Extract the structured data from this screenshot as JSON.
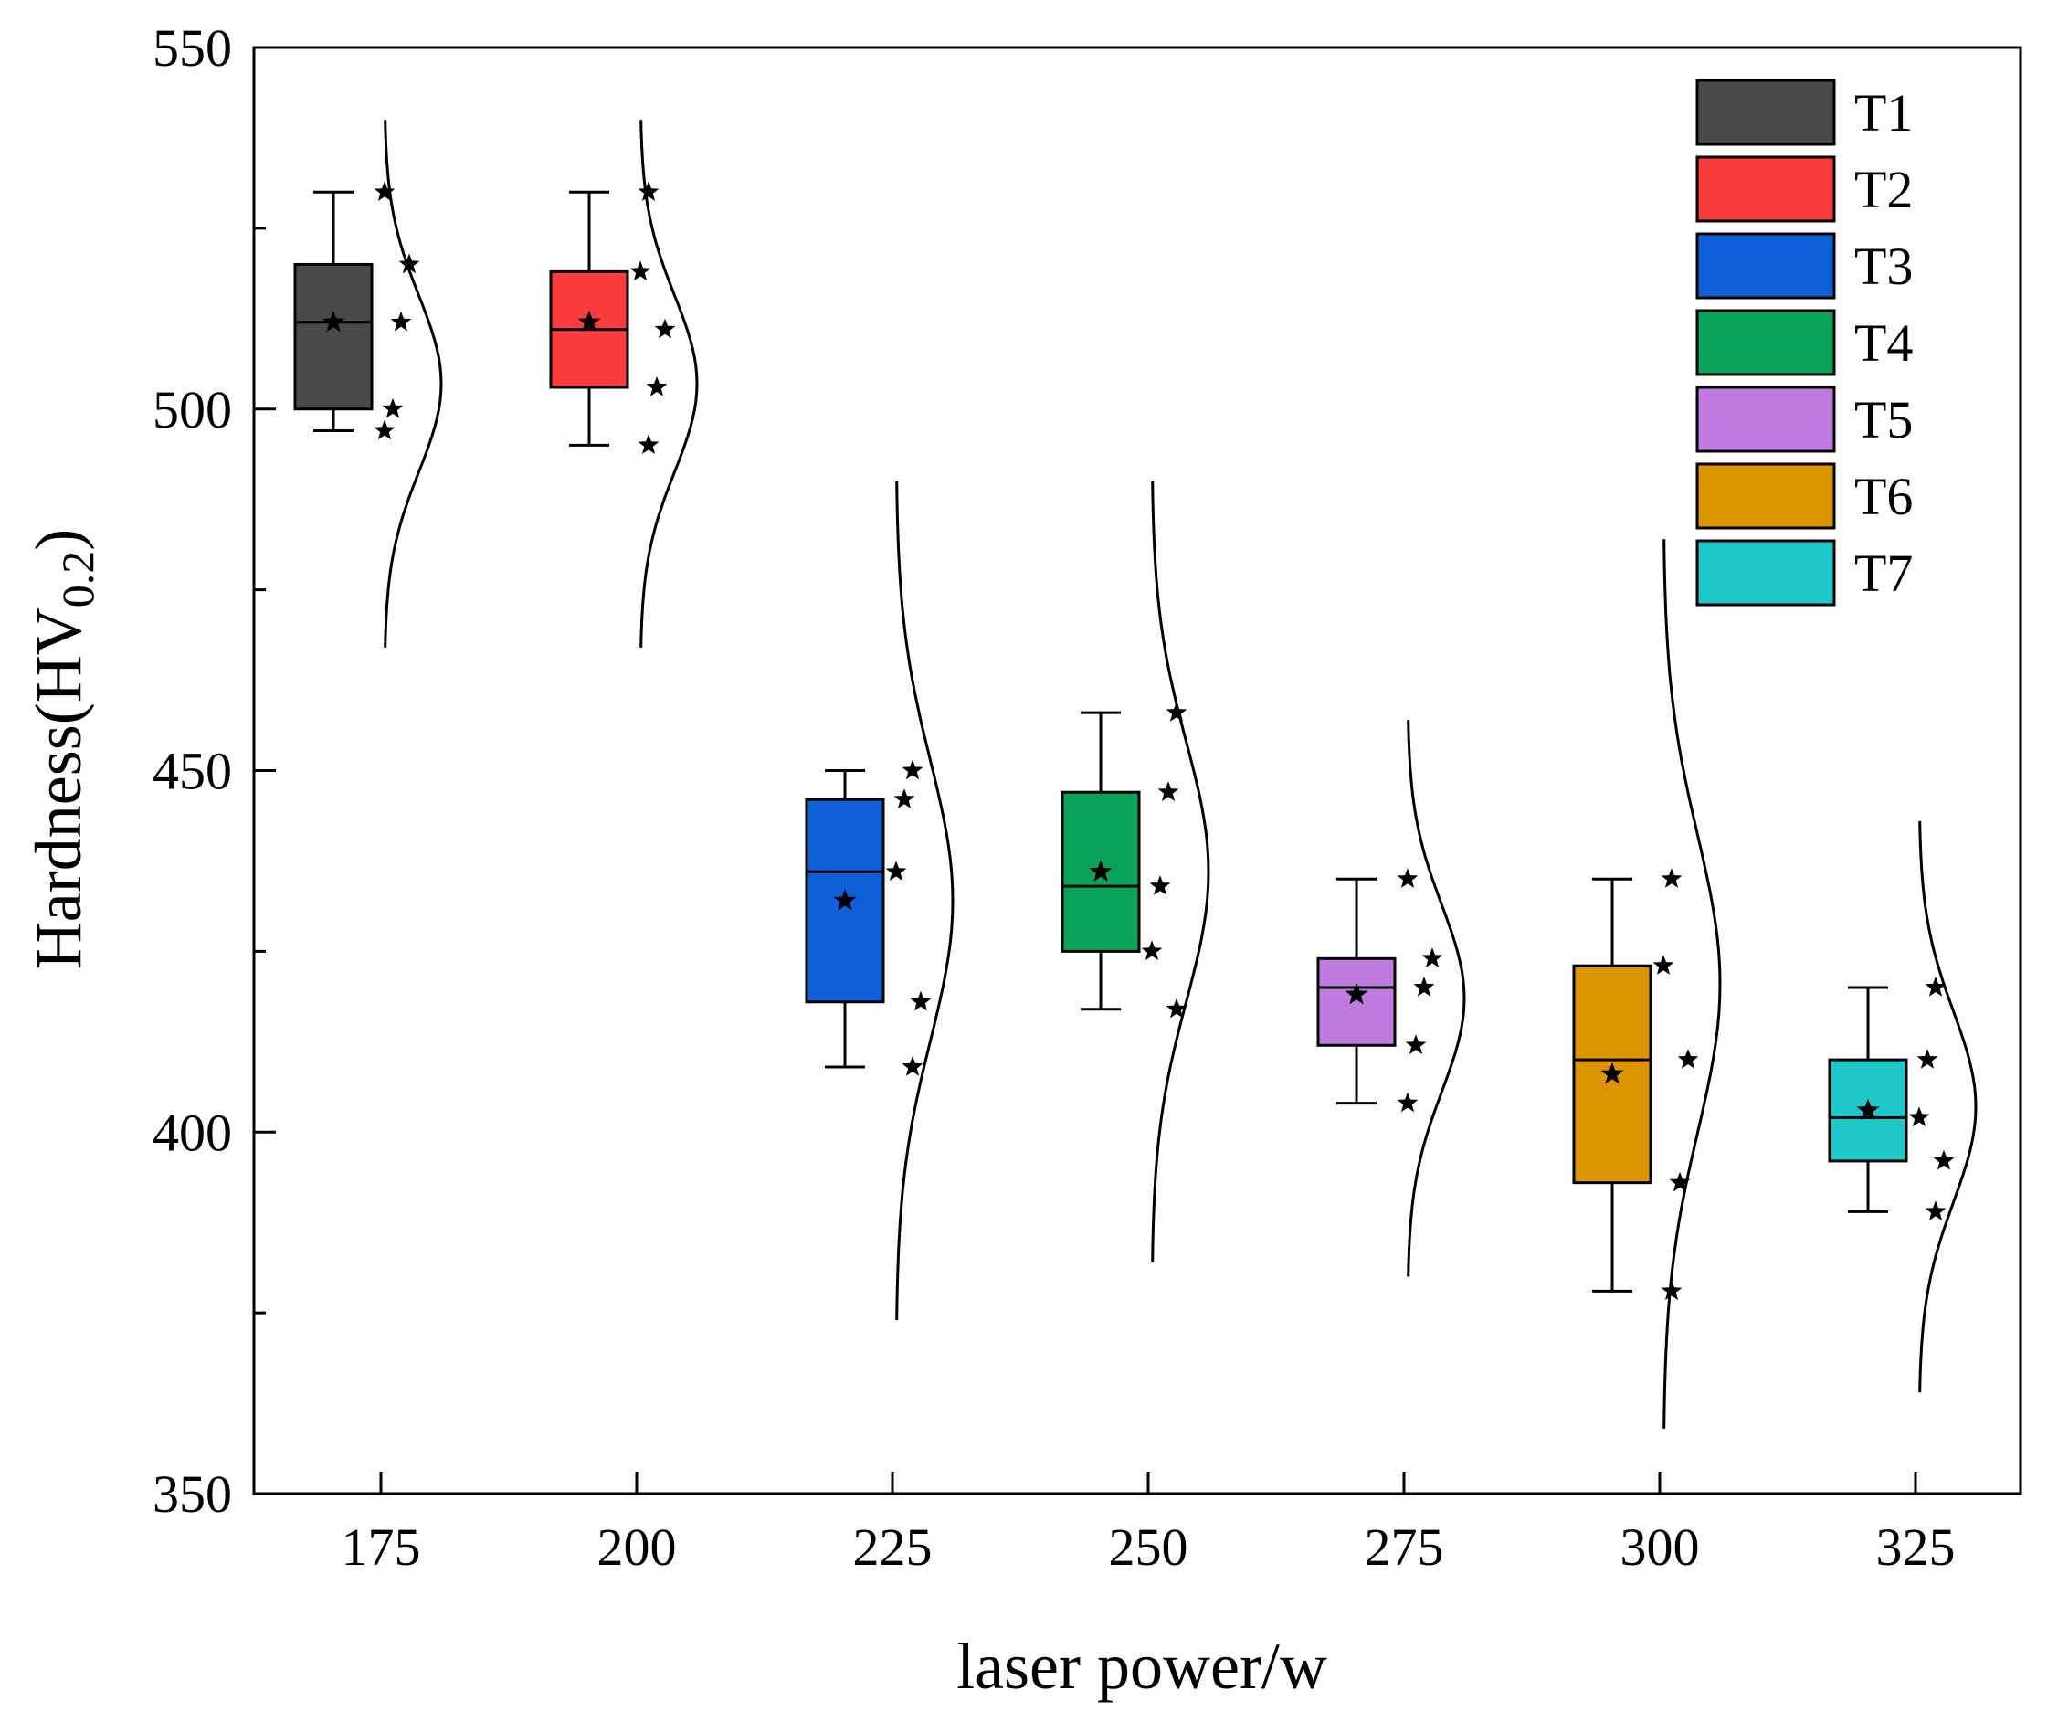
{
  "chart_data": {
    "type": "box",
    "title": "",
    "xlabel": "laser power/w",
    "ylabel": {
      "main": "Hardness(HV",
      "subscript": "0.2",
      "close": ")"
    },
    "ylim": [
      350,
      550
    ],
    "yticks": [
      350,
      400,
      450,
      500,
      550
    ],
    "categories": [
      "175",
      "200",
      "225",
      "250",
      "275",
      "300",
      "325"
    ],
    "series": [
      {
        "name": "T1",
        "color": "#4a4a4a",
        "box": {
          "min": 497,
          "q1": 500,
          "median": 512,
          "q3": 520,
          "max": 530,
          "mean": 512
        },
        "points": [
          530,
          520,
          512,
          500,
          497
        ],
        "dist": {
          "lo": 467,
          "hi": 540
        }
      },
      {
        "name": "T2",
        "color": "#fa3c3c",
        "box": {
          "min": 495,
          "q1": 503,
          "median": 511,
          "q3": 519,
          "max": 530,
          "mean": 512
        },
        "points": [
          530,
          519,
          511,
          503,
          495
        ],
        "dist": {
          "lo": 467,
          "hi": 540
        }
      },
      {
        "name": "T3",
        "color": "#0e5fd8",
        "box": {
          "min": 409,
          "q1": 418,
          "median": 436,
          "q3": 446,
          "max": 450,
          "mean": 432
        },
        "points": [
          450,
          446,
          436,
          418,
          409
        ],
        "dist": {
          "lo": 374,
          "hi": 490
        }
      },
      {
        "name": "T4",
        "color": "#0ba25a",
        "box": {
          "min": 417,
          "q1": 425,
          "median": 434,
          "q3": 447,
          "max": 458,
          "mean": 436
        },
        "points": [
          458,
          447,
          434,
          425,
          417
        ],
        "dist": {
          "lo": 382,
          "hi": 490
        }
      },
      {
        "name": "T5",
        "color": "#c07ae0",
        "box": {
          "min": 404,
          "q1": 412,
          "median": 420,
          "q3": 424,
          "max": 435,
          "mean": 419
        },
        "points": [
          435,
          424,
          420,
          412,
          404
        ],
        "dist": {
          "lo": 380,
          "hi": 457
        }
      },
      {
        "name": "T6",
        "color": "#dc9400",
        "box": {
          "min": 378,
          "q1": 393,
          "median": 410,
          "q3": 423,
          "max": 435,
          "mean": 408
        },
        "points": [
          435,
          423,
          410,
          393,
          378
        ],
        "dist": {
          "lo": 359,
          "hi": 482
        }
      },
      {
        "name": "T7",
        "color": "#1ec8c8",
        "box": {
          "min": 389,
          "q1": 396,
          "median": 402,
          "q3": 410,
          "max": 420,
          "mean": 403
        },
        "points": [
          420,
          410,
          402,
          396,
          389
        ],
        "dist": {
          "lo": 364,
          "hi": 443
        }
      }
    ],
    "legend": {
      "position": "top-right"
    },
    "grid": false
  }
}
